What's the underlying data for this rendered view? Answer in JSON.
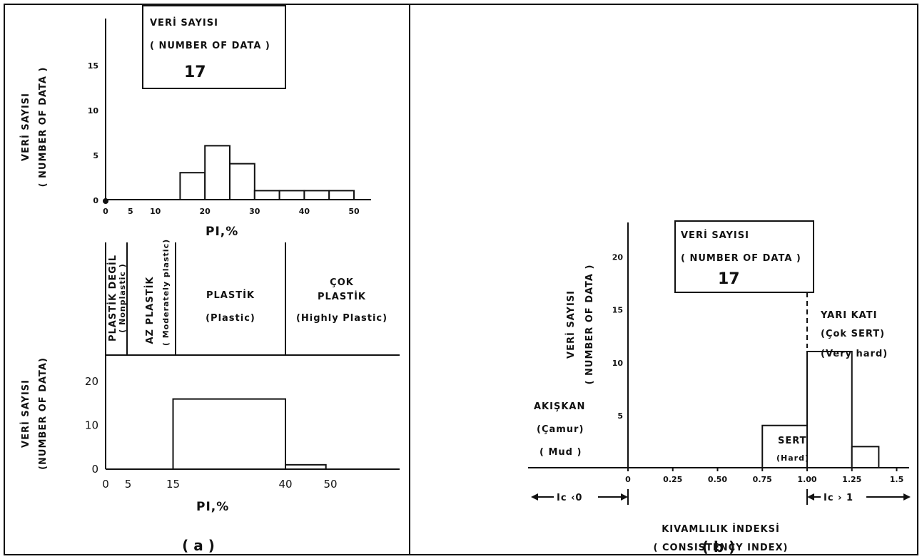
{
  "chart_data": [
    {
      "type": "bar",
      "panel": "a-top",
      "bins": [
        [
          15,
          20
        ],
        [
          20,
          25
        ],
        [
          25,
          30
        ],
        [
          30,
          35
        ],
        [
          35,
          40
        ],
        [
          40,
          45
        ],
        [
          45,
          50
        ]
      ],
      "values": [
        3,
        6,
        4,
        1,
        1,
        1,
        1
      ],
      "xticks": [
        "0",
        "5",
        "10",
        "20",
        "30",
        "40",
        "50"
      ],
      "xtick_values": [
        0,
        5,
        10,
        20,
        30,
        40,
        50
      ],
      "yticks": [
        "0",
        "5",
        "10",
        "15"
      ],
      "ytick_values": [
        0,
        5,
        10,
        15
      ],
      "xlim": [
        0,
        57
      ],
      "ylim": [
        0,
        20
      ],
      "xlabel": "PI,%",
      "ylabel": [
        "VERİ SAYISI",
        "( NUMBER OF DATA )"
      ],
      "count_box": {
        "line1": "VERİ SAYISI",
        "line2": "( NUMBER OF DATA )",
        "count": "17"
      }
    },
    {
      "type": "bar",
      "panel": "a-bottom",
      "bins": [
        [
          15,
          40
        ],
        [
          40,
          49
        ]
      ],
      "values": [
        16,
        1
      ],
      "xticks": [
        "0",
        "5",
        "15",
        "40",
        "50"
      ],
      "xtick_values": [
        0,
        5,
        15,
        40,
        50
      ],
      "yticks": [
        "0",
        "10",
        "20"
      ],
      "ytick_values": [
        0,
        10,
        20
      ],
      "xlim": [
        0,
        57
      ],
      "ylim": [
        0,
        22
      ],
      "xlabel": "PI,%",
      "ylabel": [
        "VERİ SAYISI",
        "(NUMBER OF DATA)"
      ],
      "zones": [
        {
          "range": [
            0,
            5
          ],
          "lines": [
            "PLASTİK DEGİL",
            "( Nonplastic )"
          ]
        },
        {
          "range": [
            5,
            15
          ],
          "lines": [
            "AZ PLASTİK",
            "( Moderately plastic)"
          ]
        },
        {
          "range": [
            15,
            40
          ],
          "lines": [
            "PLASTİK",
            "(Plastic)"
          ]
        },
        {
          "range": [
            40,
            57
          ],
          "lines": [
            "ÇOK",
            "PLASTİK",
            "(Highly Plastic)"
          ]
        }
      ]
    },
    {
      "type": "bar",
      "panel": "b",
      "bins": [
        [
          0.75,
          1.0
        ],
        [
          1.0,
          1.25
        ],
        [
          1.25,
          1.4
        ]
      ],
      "values": [
        4,
        11,
        2
      ],
      "xticks": [
        "0",
        "0.25",
        "0.50",
        "0.75",
        "1.00",
        "1.25",
        "1.5"
      ],
      "xtick_values": [
        0,
        0.25,
        0.5,
        0.75,
        1.0,
        1.25,
        1.5
      ],
      "yticks": [
        "5",
        "10",
        "15",
        "20"
      ],
      "ytick_values": [
        5,
        10,
        15,
        20
      ],
      "xlim": [
        -0.5,
        1.5
      ],
      "ylim": [
        0,
        25
      ],
      "xlabel": [
        "KIVAMLILIK İNDEKSİ",
        "( CONSISTENCY INDEX)"
      ],
      "ylabel": [
        "VERİ SAYISI",
        "( NUMBER OF DATA )"
      ],
      "count_box": {
        "line1": "VERİ SAYISI",
        "line2": "( NUMBER OF DATA )",
        "count": "17"
      },
      "zones": [
        {
          "lines": [
            "AKIŞKAN",
            "(Çamur)",
            "( Mud )"
          ]
        },
        {
          "lines": [
            "SERT",
            "(Hard)"
          ]
        },
        {
          "lines": [
            "YARI KATI",
            "(Çok SERT)",
            "(Very hard)"
          ]
        }
      ],
      "range_labels": {
        "left": "Ic ‹0",
        "right": "Ic › 1"
      }
    }
  ],
  "panel_labels": {
    "a": "( a )",
    "b": "( b )"
  }
}
